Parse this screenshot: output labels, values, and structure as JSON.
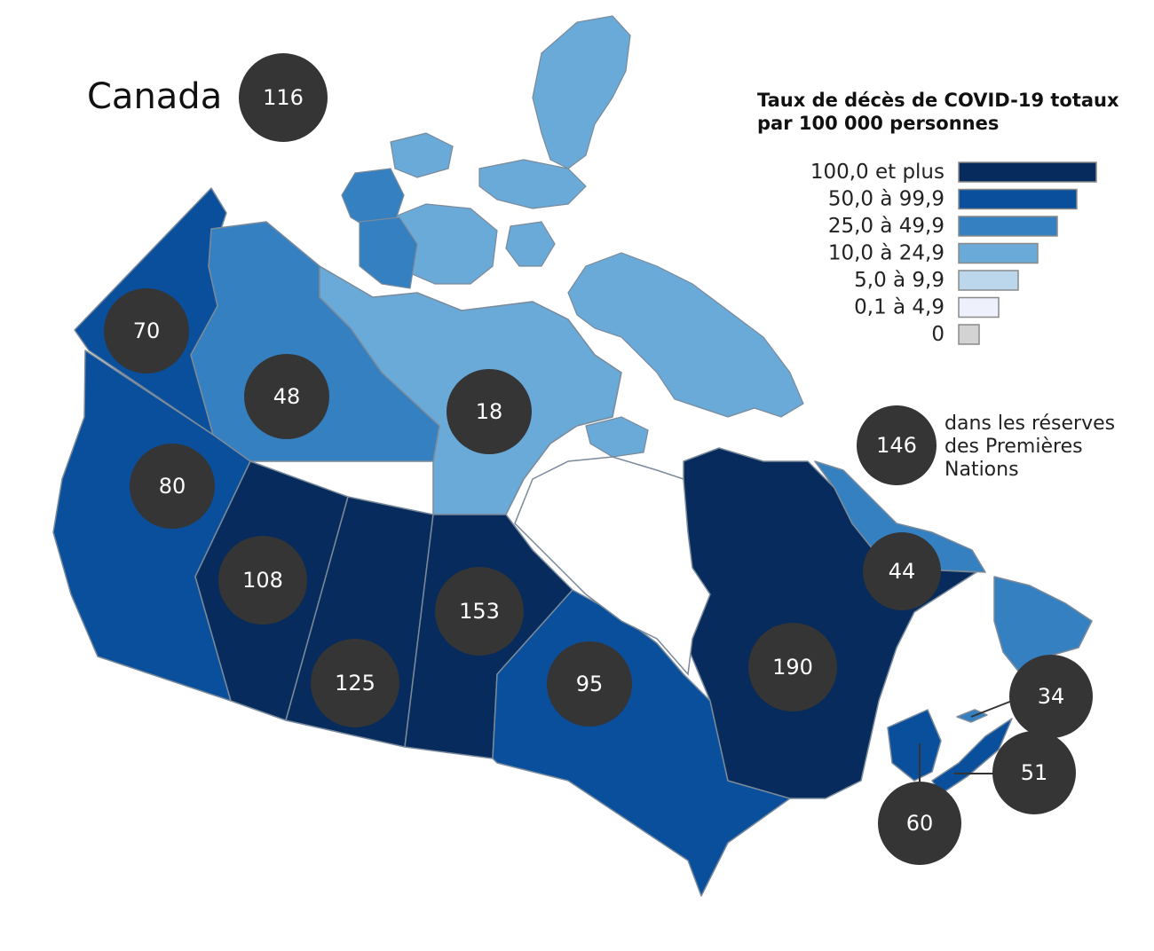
{
  "country": {
    "label": "Canada",
    "value": "116"
  },
  "legend": {
    "title_line1": "Taux de décès de COVID-19 totaux",
    "title_line2": "par 100 000 personnes",
    "items": [
      {
        "label": "100,0 et plus",
        "color": "#062b5c"
      },
      {
        "label": "50,0 à 99,9",
        "color": "#0a4f9c"
      },
      {
        "label": "25,0 à 49,9",
        "color": "#3580c1"
      },
      {
        "label": "10,0 à 24,9",
        "color": "#6aaad8"
      },
      {
        "label": "5,0 à 9,9",
        "color": "#bcd6ec"
      },
      {
        "label": "0,1 à 4,9",
        "color": "#eef1fb"
      },
      {
        "label": "0",
        "color": "#d3d3d3"
      }
    ]
  },
  "first_nations": {
    "value": "146",
    "line1": "dans les réserves",
    "line2": "des Premières",
    "line3": "Nations"
  },
  "regions": {
    "yukon": {
      "value": "70",
      "color": "#0a4f9c"
    },
    "northwest_territories": {
      "value": "48",
      "color": "#3580c1"
    },
    "nunavut": {
      "value": "18",
      "color": "#6aaad8"
    },
    "british_columbia": {
      "value": "80",
      "color": "#0a4f9c"
    },
    "alberta": {
      "value": "108",
      "color": "#062b5c"
    },
    "saskatchewan": {
      "value": "125",
      "color": "#062b5c"
    },
    "manitoba": {
      "value": "153",
      "color": "#062b5c"
    },
    "ontario": {
      "value": "95",
      "color": "#0a4f9c"
    },
    "quebec": {
      "value": "190",
      "color": "#062b5c"
    },
    "newfoundland_labrador": {
      "value": "44",
      "color": "#3580c1"
    },
    "prince_edward_island": {
      "value": "34",
      "color": "#3580c1"
    },
    "nova_scotia": {
      "value": "51",
      "color": "#0a4f9c"
    },
    "new_brunswick": {
      "value": "60",
      "color": "#0a4f9c"
    }
  },
  "bubble_color": "#353535"
}
